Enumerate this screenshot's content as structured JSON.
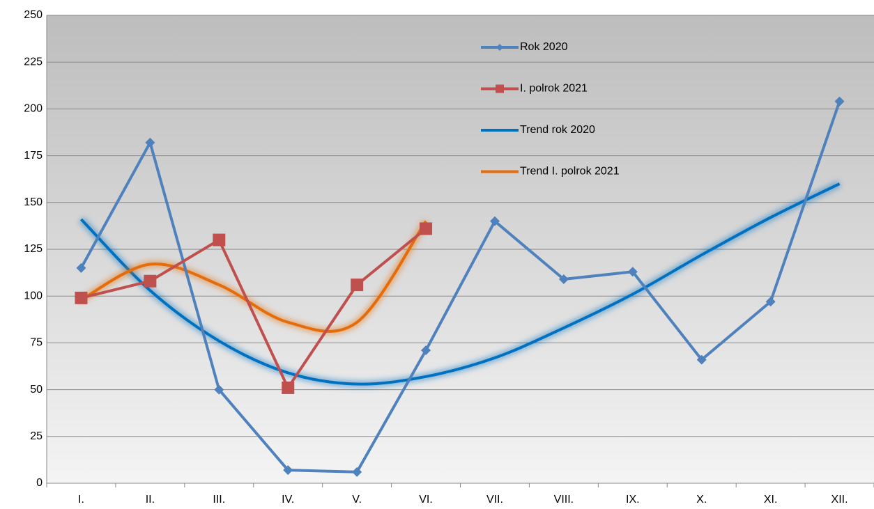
{
  "chart_data": {
    "type": "line",
    "categories": [
      "I.",
      "II.",
      "III.",
      "IV.",
      "V.",
      "VI.",
      "VII.",
      "VIII.",
      "IX.",
      "X.",
      "XI.",
      "XII."
    ],
    "series": [
      {
        "name": "Rok 2020",
        "color": "#4f81bd",
        "marker": "diamond",
        "values": [
          115,
          182,
          50,
          7,
          6,
          71,
          140,
          109,
          113,
          66,
          97,
          204
        ]
      },
      {
        "name": "I. polrok 2021",
        "color": "#c0504d",
        "marker": "square",
        "values": [
          99,
          108,
          130,
          51,
          106,
          136,
          null,
          null,
          null,
          null,
          null,
          null
        ]
      },
      {
        "name": "Trend rok 2020",
        "color": "#0070c0",
        "smooth": true,
        "values": [
          141,
          103,
          76,
          59,
          53,
          57,
          67,
          83,
          101,
          122,
          142,
          160
        ]
      },
      {
        "name": "Trend I. polrok 2021",
        "color": "#e46c0a",
        "smooth": true,
        "values": [
          98,
          117,
          106,
          86,
          86,
          140,
          null,
          null,
          null,
          null,
          null,
          null
        ]
      }
    ],
    "ylim": [
      0,
      250
    ],
    "yticks": [
      0,
      25,
      50,
      75,
      100,
      125,
      150,
      175,
      200,
      225,
      250
    ],
    "grid": true,
    "legend": "upper right"
  }
}
